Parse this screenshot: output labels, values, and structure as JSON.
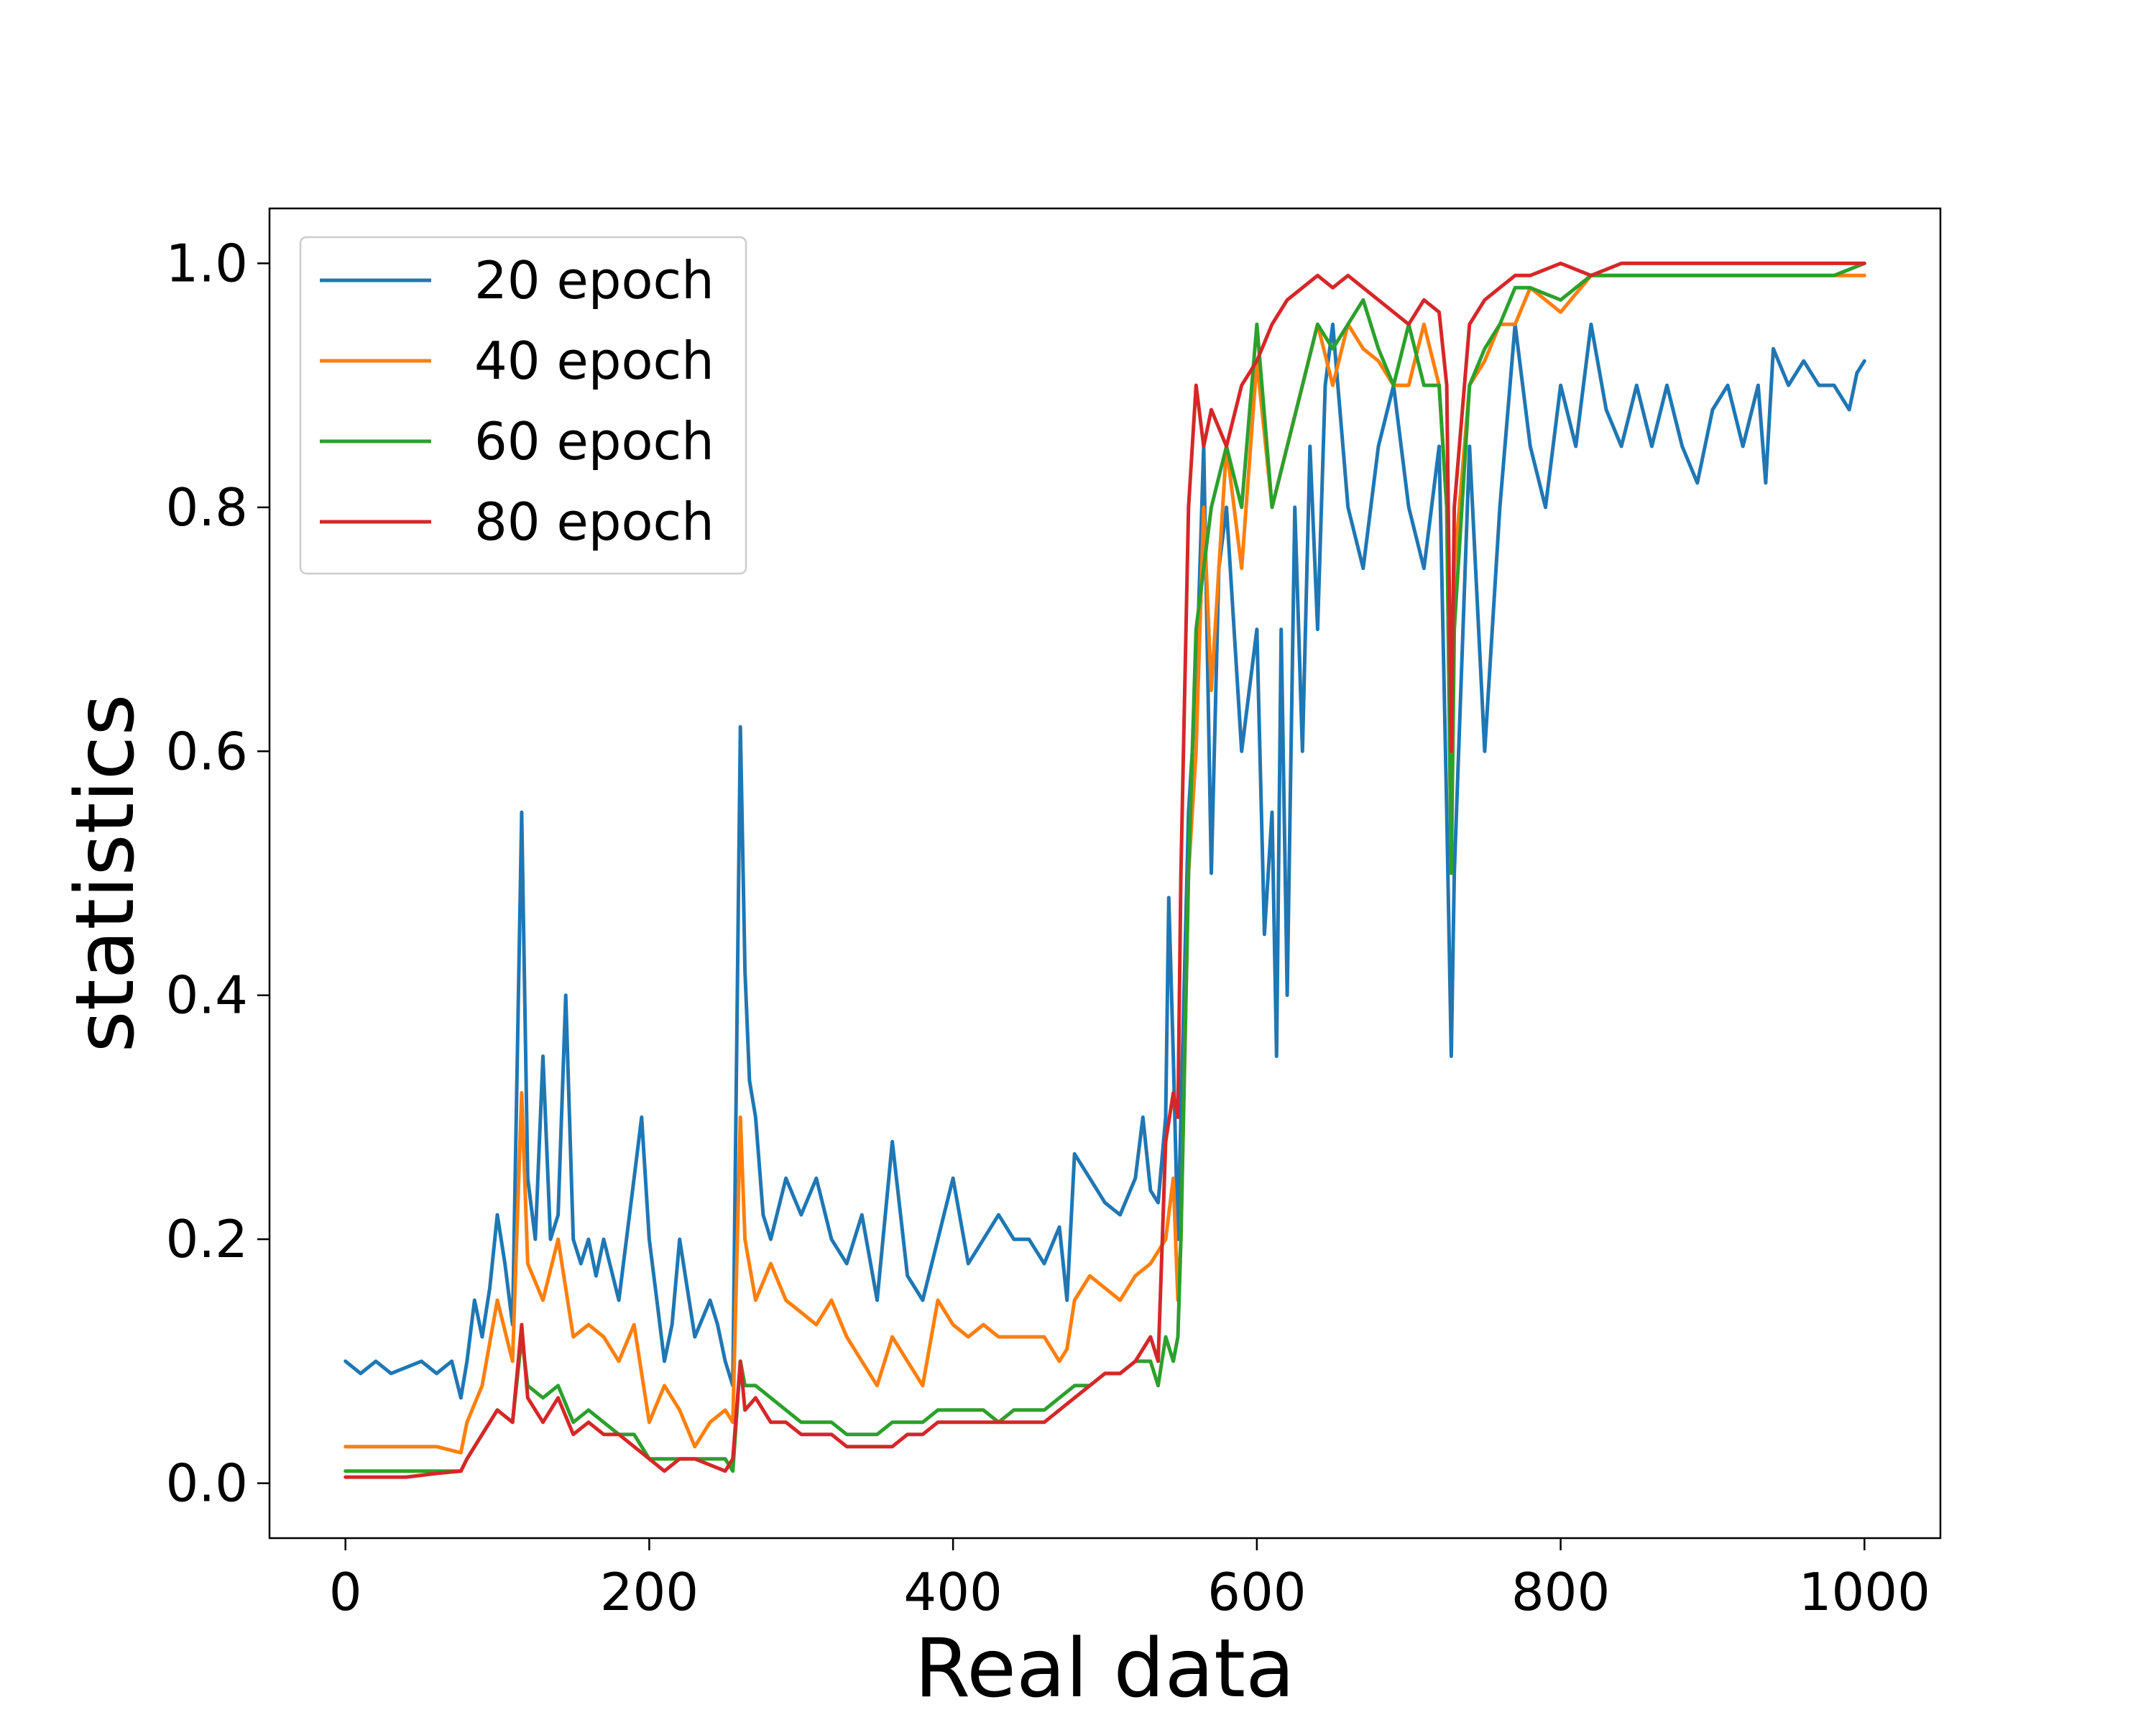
{
  "chart_data": {
    "type": "line",
    "title": "",
    "xlabel": "Real data",
    "ylabel": "statistics",
    "xlim": [
      -50,
      1050
    ],
    "ylim": [
      -0.045,
      1.045
    ],
    "xticks": [
      0,
      200,
      400,
      600,
      800,
      1000
    ],
    "xtick_labels": [
      "0",
      "200",
      "400",
      "600",
      "800",
      "1000"
    ],
    "yticks": [
      0.0,
      0.2,
      0.4,
      0.6,
      0.8,
      1.0
    ],
    "ytick_labels": [
      "0.0",
      "0.2",
      "0.4",
      "0.6",
      "0.8",
      "1.0"
    ],
    "grid": false,
    "legend_position": "upper-left",
    "series": [
      {
        "name": "20 epoch",
        "color": "#1f77b4",
        "x": [
          0,
          10,
          20,
          30,
          40,
          50,
          60,
          70,
          76,
          80,
          85,
          90,
          95,
          100,
          105,
          110,
          116,
          120,
          125,
          130,
          135,
          140,
          145,
          150,
          155,
          160,
          165,
          170,
          180,
          190,
          195,
          200,
          205,
          210,
          215,
          220,
          230,
          240,
          245,
          250,
          255,
          260,
          263,
          266,
          270,
          275,
          280,
          290,
          300,
          310,
          320,
          330,
          340,
          350,
          360,
          370,
          380,
          390,
          400,
          410,
          420,
          430,
          440,
          450,
          460,
          470,
          475,
          480,
          490,
          500,
          510,
          520,
          525,
          530,
          535,
          540,
          542,
          545,
          548,
          550,
          555,
          560,
          565,
          570,
          575,
          580,
          590,
          600,
          605,
          610,
          613,
          616,
          620,
          625,
          630,
          635,
          640,
          645,
          650,
          660,
          670,
          680,
          690,
          700,
          710,
          720,
          725,
          728,
          730,
          740,
          750,
          760,
          770,
          780,
          790,
          800,
          810,
          820,
          830,
          840,
          850,
          860,
          870,
          880,
          890,
          900,
          910,
          920,
          930,
          935,
          940,
          950,
          960,
          970,
          980,
          990,
          995,
          1000
        ],
        "values": [
          0.1,
          0.09,
          0.1,
          0.09,
          0.095,
          0.1,
          0.09,
          0.1,
          0.07,
          0.1,
          0.15,
          0.12,
          0.16,
          0.22,
          0.18,
          0.13,
          0.55,
          0.25,
          0.2,
          0.35,
          0.2,
          0.22,
          0.4,
          0.2,
          0.18,
          0.2,
          0.17,
          0.2,
          0.15,
          0.25,
          0.3,
          0.2,
          0.15,
          0.1,
          0.13,
          0.2,
          0.12,
          0.15,
          0.13,
          0.1,
          0.08,
          0.62,
          0.42,
          0.33,
          0.3,
          0.22,
          0.2,
          0.25,
          0.22,
          0.25,
          0.2,
          0.18,
          0.22,
          0.15,
          0.28,
          0.17,
          0.15,
          0.2,
          0.25,
          0.18,
          0.2,
          0.22,
          0.2,
          0.2,
          0.18,
          0.21,
          0.15,
          0.27,
          0.25,
          0.23,
          0.22,
          0.25,
          0.3,
          0.24,
          0.23,
          0.3,
          0.48,
          0.35,
          0.2,
          0.3,
          0.55,
          0.65,
          0.85,
          0.5,
          0.75,
          0.8,
          0.6,
          0.7,
          0.45,
          0.55,
          0.35,
          0.7,
          0.4,
          0.8,
          0.6,
          0.85,
          0.7,
          0.9,
          0.95,
          0.8,
          0.75,
          0.85,
          0.9,
          0.8,
          0.75,
          0.85,
          0.55,
          0.35,
          0.5,
          0.85,
          0.6,
          0.8,
          0.95,
          0.85,
          0.8,
          0.9,
          0.85,
          0.95,
          0.88,
          0.85,
          0.9,
          0.85,
          0.9,
          0.85,
          0.82,
          0.88,
          0.9,
          0.85,
          0.9,
          0.82,
          0.93,
          0.9,
          0.92,
          0.9,
          0.9,
          0.88,
          0.91,
          0.92
        ]
      },
      {
        "name": "40 epoch",
        "color": "#ff7f0e",
        "x": [
          0,
          20,
          40,
          60,
          76,
          80,
          90,
          100,
          110,
          116,
          120,
          130,
          140,
          150,
          160,
          170,
          180,
          190,
          200,
          210,
          220,
          230,
          240,
          250,
          255,
          260,
          263,
          270,
          280,
          290,
          300,
          310,
          320,
          330,
          340,
          350,
          360,
          370,
          380,
          390,
          400,
          410,
          420,
          430,
          440,
          450,
          460,
          470,
          475,
          480,
          490,
          500,
          510,
          520,
          530,
          540,
          545,
          548,
          550,
          555,
          560,
          565,
          570,
          580,
          590,
          600,
          610,
          620,
          630,
          640,
          650,
          660,
          670,
          680,
          690,
          700,
          710,
          720,
          725,
          728,
          730,
          740,
          750,
          760,
          770,
          780,
          800,
          820,
          840,
          860,
          880,
          900,
          920,
          940,
          960,
          980,
          1000
        ],
        "values": [
          0.03,
          0.03,
          0.03,
          0.03,
          0.025,
          0.05,
          0.08,
          0.15,
          0.1,
          0.32,
          0.18,
          0.15,
          0.2,
          0.12,
          0.13,
          0.12,
          0.1,
          0.13,
          0.05,
          0.08,
          0.06,
          0.03,
          0.05,
          0.06,
          0.05,
          0.3,
          0.2,
          0.15,
          0.18,
          0.15,
          0.14,
          0.13,
          0.15,
          0.12,
          0.1,
          0.08,
          0.12,
          0.1,
          0.08,
          0.15,
          0.13,
          0.12,
          0.13,
          0.12,
          0.12,
          0.12,
          0.12,
          0.1,
          0.11,
          0.15,
          0.17,
          0.16,
          0.15,
          0.17,
          0.18,
          0.2,
          0.25,
          0.15,
          0.2,
          0.5,
          0.6,
          0.8,
          0.65,
          0.85,
          0.75,
          0.92,
          0.8,
          0.85,
          0.9,
          0.95,
          0.9,
          0.95,
          0.93,
          0.92,
          0.9,
          0.9,
          0.95,
          0.9,
          0.8,
          0.5,
          0.75,
          0.9,
          0.92,
          0.95,
          0.95,
          0.98,
          0.96,
          0.99,
          0.99,
          0.99,
          0.99,
          0.99,
          0.99,
          0.99,
          0.99,
          0.99,
          0.99
        ]
      },
      {
        "name": "60 epoch",
        "color": "#2ca02c",
        "x": [
          0,
          20,
          40,
          60,
          76,
          80,
          90,
          100,
          110,
          116,
          120,
          130,
          140,
          150,
          160,
          170,
          180,
          190,
          200,
          210,
          220,
          230,
          240,
          250,
          255,
          260,
          263,
          270,
          280,
          290,
          300,
          310,
          320,
          330,
          340,
          350,
          360,
          370,
          380,
          390,
          400,
          410,
          420,
          430,
          440,
          450,
          460,
          470,
          480,
          490,
          500,
          510,
          520,
          530,
          535,
          540,
          545,
          548,
          550,
          555,
          560,
          565,
          570,
          580,
          590,
          600,
          610,
          620,
          630,
          640,
          650,
          660,
          670,
          680,
          690,
          700,
          710,
          720,
          725,
          728,
          730,
          740,
          750,
          760,
          770,
          780,
          800,
          820,
          840,
          860,
          880,
          900,
          920,
          940,
          960,
          980,
          1000
        ],
        "values": [
          0.01,
          0.01,
          0.01,
          0.01,
          0.01,
          0.02,
          0.04,
          0.06,
          0.05,
          0.12,
          0.08,
          0.07,
          0.08,
          0.05,
          0.06,
          0.05,
          0.04,
          0.04,
          0.02,
          0.02,
          0.02,
          0.02,
          0.02,
          0.02,
          0.01,
          0.1,
          0.08,
          0.08,
          0.07,
          0.06,
          0.05,
          0.05,
          0.05,
          0.04,
          0.04,
          0.04,
          0.05,
          0.05,
          0.05,
          0.06,
          0.06,
          0.06,
          0.06,
          0.05,
          0.06,
          0.06,
          0.06,
          0.07,
          0.08,
          0.08,
          0.09,
          0.09,
          0.1,
          0.1,
          0.08,
          0.12,
          0.1,
          0.12,
          0.2,
          0.5,
          0.7,
          0.75,
          0.8,
          0.85,
          0.8,
          0.95,
          0.8,
          0.85,
          0.9,
          0.95,
          0.93,
          0.95,
          0.97,
          0.93,
          0.9,
          0.95,
          0.9,
          0.9,
          0.8,
          0.5,
          0.7,
          0.9,
          0.93,
          0.95,
          0.98,
          0.98,
          0.97,
          0.99,
          0.99,
          0.99,
          0.99,
          0.99,
          0.99,
          0.99,
          0.99,
          0.99,
          1.0
        ]
      },
      {
        "name": "80 epoch",
        "color": "#d62728",
        "x": [
          0,
          20,
          40,
          60,
          76,
          80,
          90,
          100,
          110,
          116,
          120,
          130,
          140,
          150,
          160,
          170,
          180,
          190,
          200,
          210,
          220,
          230,
          240,
          250,
          255,
          260,
          263,
          270,
          280,
          290,
          300,
          310,
          320,
          330,
          340,
          350,
          360,
          370,
          380,
          390,
          400,
          410,
          420,
          430,
          440,
          450,
          460,
          470,
          480,
          490,
          500,
          510,
          520,
          530,
          535,
          540,
          545,
          548,
          550,
          555,
          560,
          565,
          570,
          580,
          590,
          600,
          610,
          620,
          630,
          640,
          650,
          660,
          670,
          680,
          690,
          700,
          710,
          720,
          725,
          728,
          730,
          740,
          750,
          760,
          770,
          780,
          800,
          820,
          840,
          860,
          880,
          900,
          920,
          940,
          960,
          980,
          1000
        ],
        "values": [
          0.005,
          0.005,
          0.005,
          0.008,
          0.01,
          0.02,
          0.04,
          0.06,
          0.05,
          0.13,
          0.07,
          0.05,
          0.07,
          0.04,
          0.05,
          0.04,
          0.04,
          0.03,
          0.02,
          0.01,
          0.02,
          0.02,
          0.015,
          0.01,
          0.02,
          0.1,
          0.06,
          0.07,
          0.05,
          0.05,
          0.04,
          0.04,
          0.04,
          0.03,
          0.03,
          0.03,
          0.03,
          0.04,
          0.04,
          0.05,
          0.05,
          0.05,
          0.05,
          0.05,
          0.05,
          0.05,
          0.05,
          0.06,
          0.07,
          0.08,
          0.09,
          0.09,
          0.1,
          0.12,
          0.1,
          0.28,
          0.32,
          0.3,
          0.5,
          0.8,
          0.9,
          0.85,
          0.88,
          0.85,
          0.9,
          0.92,
          0.95,
          0.97,
          0.98,
          0.99,
          0.98,
          0.99,
          0.98,
          0.97,
          0.96,
          0.95,
          0.97,
          0.96,
          0.9,
          0.6,
          0.8,
          0.95,
          0.97,
          0.98,
          0.99,
          0.99,
          1.0,
          0.99,
          1.0,
          1.0,
          1.0,
          1.0,
          1.0,
          1.0,
          1.0,
          1.0,
          1.0
        ]
      }
    ]
  }
}
